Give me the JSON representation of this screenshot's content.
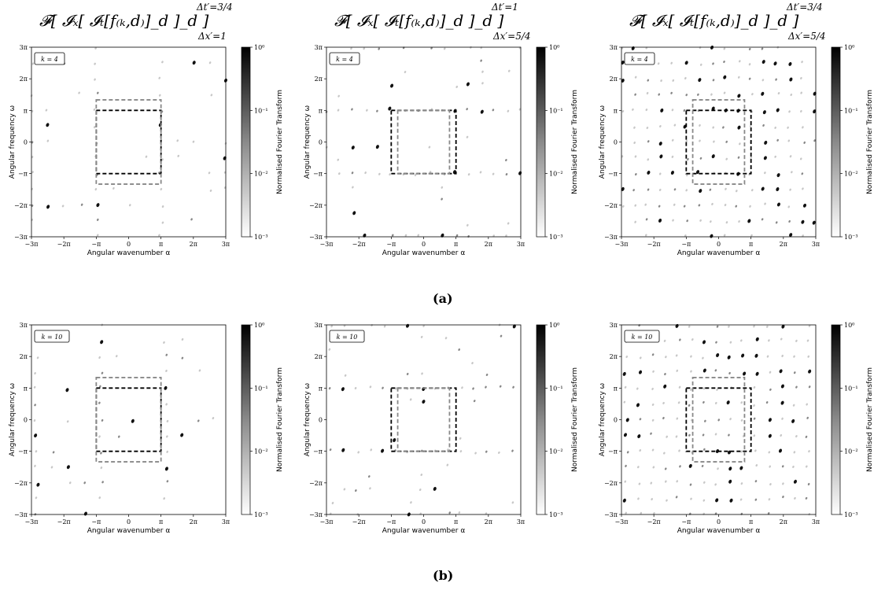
{
  "chart_data": {
    "type": "heatmap",
    "description_free": true,
    "xlabel": "Angular wavenumber α",
    "ylabel": "Angular frequency ω",
    "colorbar_label": "Normalised Fourier Transform",
    "colorbar_ticks": [
      "10⁰",
      "10⁻¹",
      "10⁻²",
      "10⁻³"
    ],
    "x_ticks": [
      "−3π",
      "−2π",
      "−π",
      "0",
      "π",
      "2π",
      "3π"
    ],
    "y_ticks": [
      "3π",
      "2π",
      "π",
      "0",
      "−π",
      "−2π",
      "−3π"
    ],
    "xlim": [
      -3,
      3
    ],
    "ylim": [
      -3,
      3
    ],
    "axis_unit": "π",
    "colormap": "Greys, log scale from 1e-3 to 1e0",
    "boxes": {
      "black": {
        "style": "dashed",
        "color": "#000000",
        "x": [
          -1,
          1
        ],
        "y": [
          -1,
          1
        ]
      },
      "grey": {
        "style": "dashed",
        "color": "#888888"
      }
    },
    "columns": [
      {
        "title": {
          "main": "𝓕[ 𝓘ₓ[ 𝓘ₜ[f₍ₖ,d₎]_d ]_d ]",
          "sup": "Δt′=3/4",
          "sub": "Δx′=1"
        },
        "grey_box": {
          "x": [
            -1,
            1
          ],
          "y": [
            -1.3333,
            1.3333
          ]
        }
      },
      {
        "title": {
          "main": "𝓕[ 𝓘ₓ[ 𝓘ₜ[f₍ₖ,d₎]_d ]_d ]",
          "sup": "Δt′=1",
          "sub": "Δx′=5/4"
        },
        "grey_box": {
          "x": [
            -0.8,
            0.8
          ],
          "y": [
            -1,
            1
          ]
        }
      },
      {
        "title": {
          "main": "𝓕[ 𝓘ₓ[ 𝓘ₜ[f₍ₖ,d₎]_d ]_d ]",
          "sup": "Δt′=3/4",
          "sub": "Δx′=5/4"
        },
        "grey_box": {
          "x": [
            -0.8,
            0.8
          ],
          "y": [
            -1.3333,
            1.3333
          ]
        }
      }
    ],
    "rows": [
      {
        "k_label": "k = 4",
        "caption": "(a)",
        "k": 4
      },
      {
        "k_label": "k = 10",
        "caption": "(b)",
        "k": 10
      }
    ]
  }
}
